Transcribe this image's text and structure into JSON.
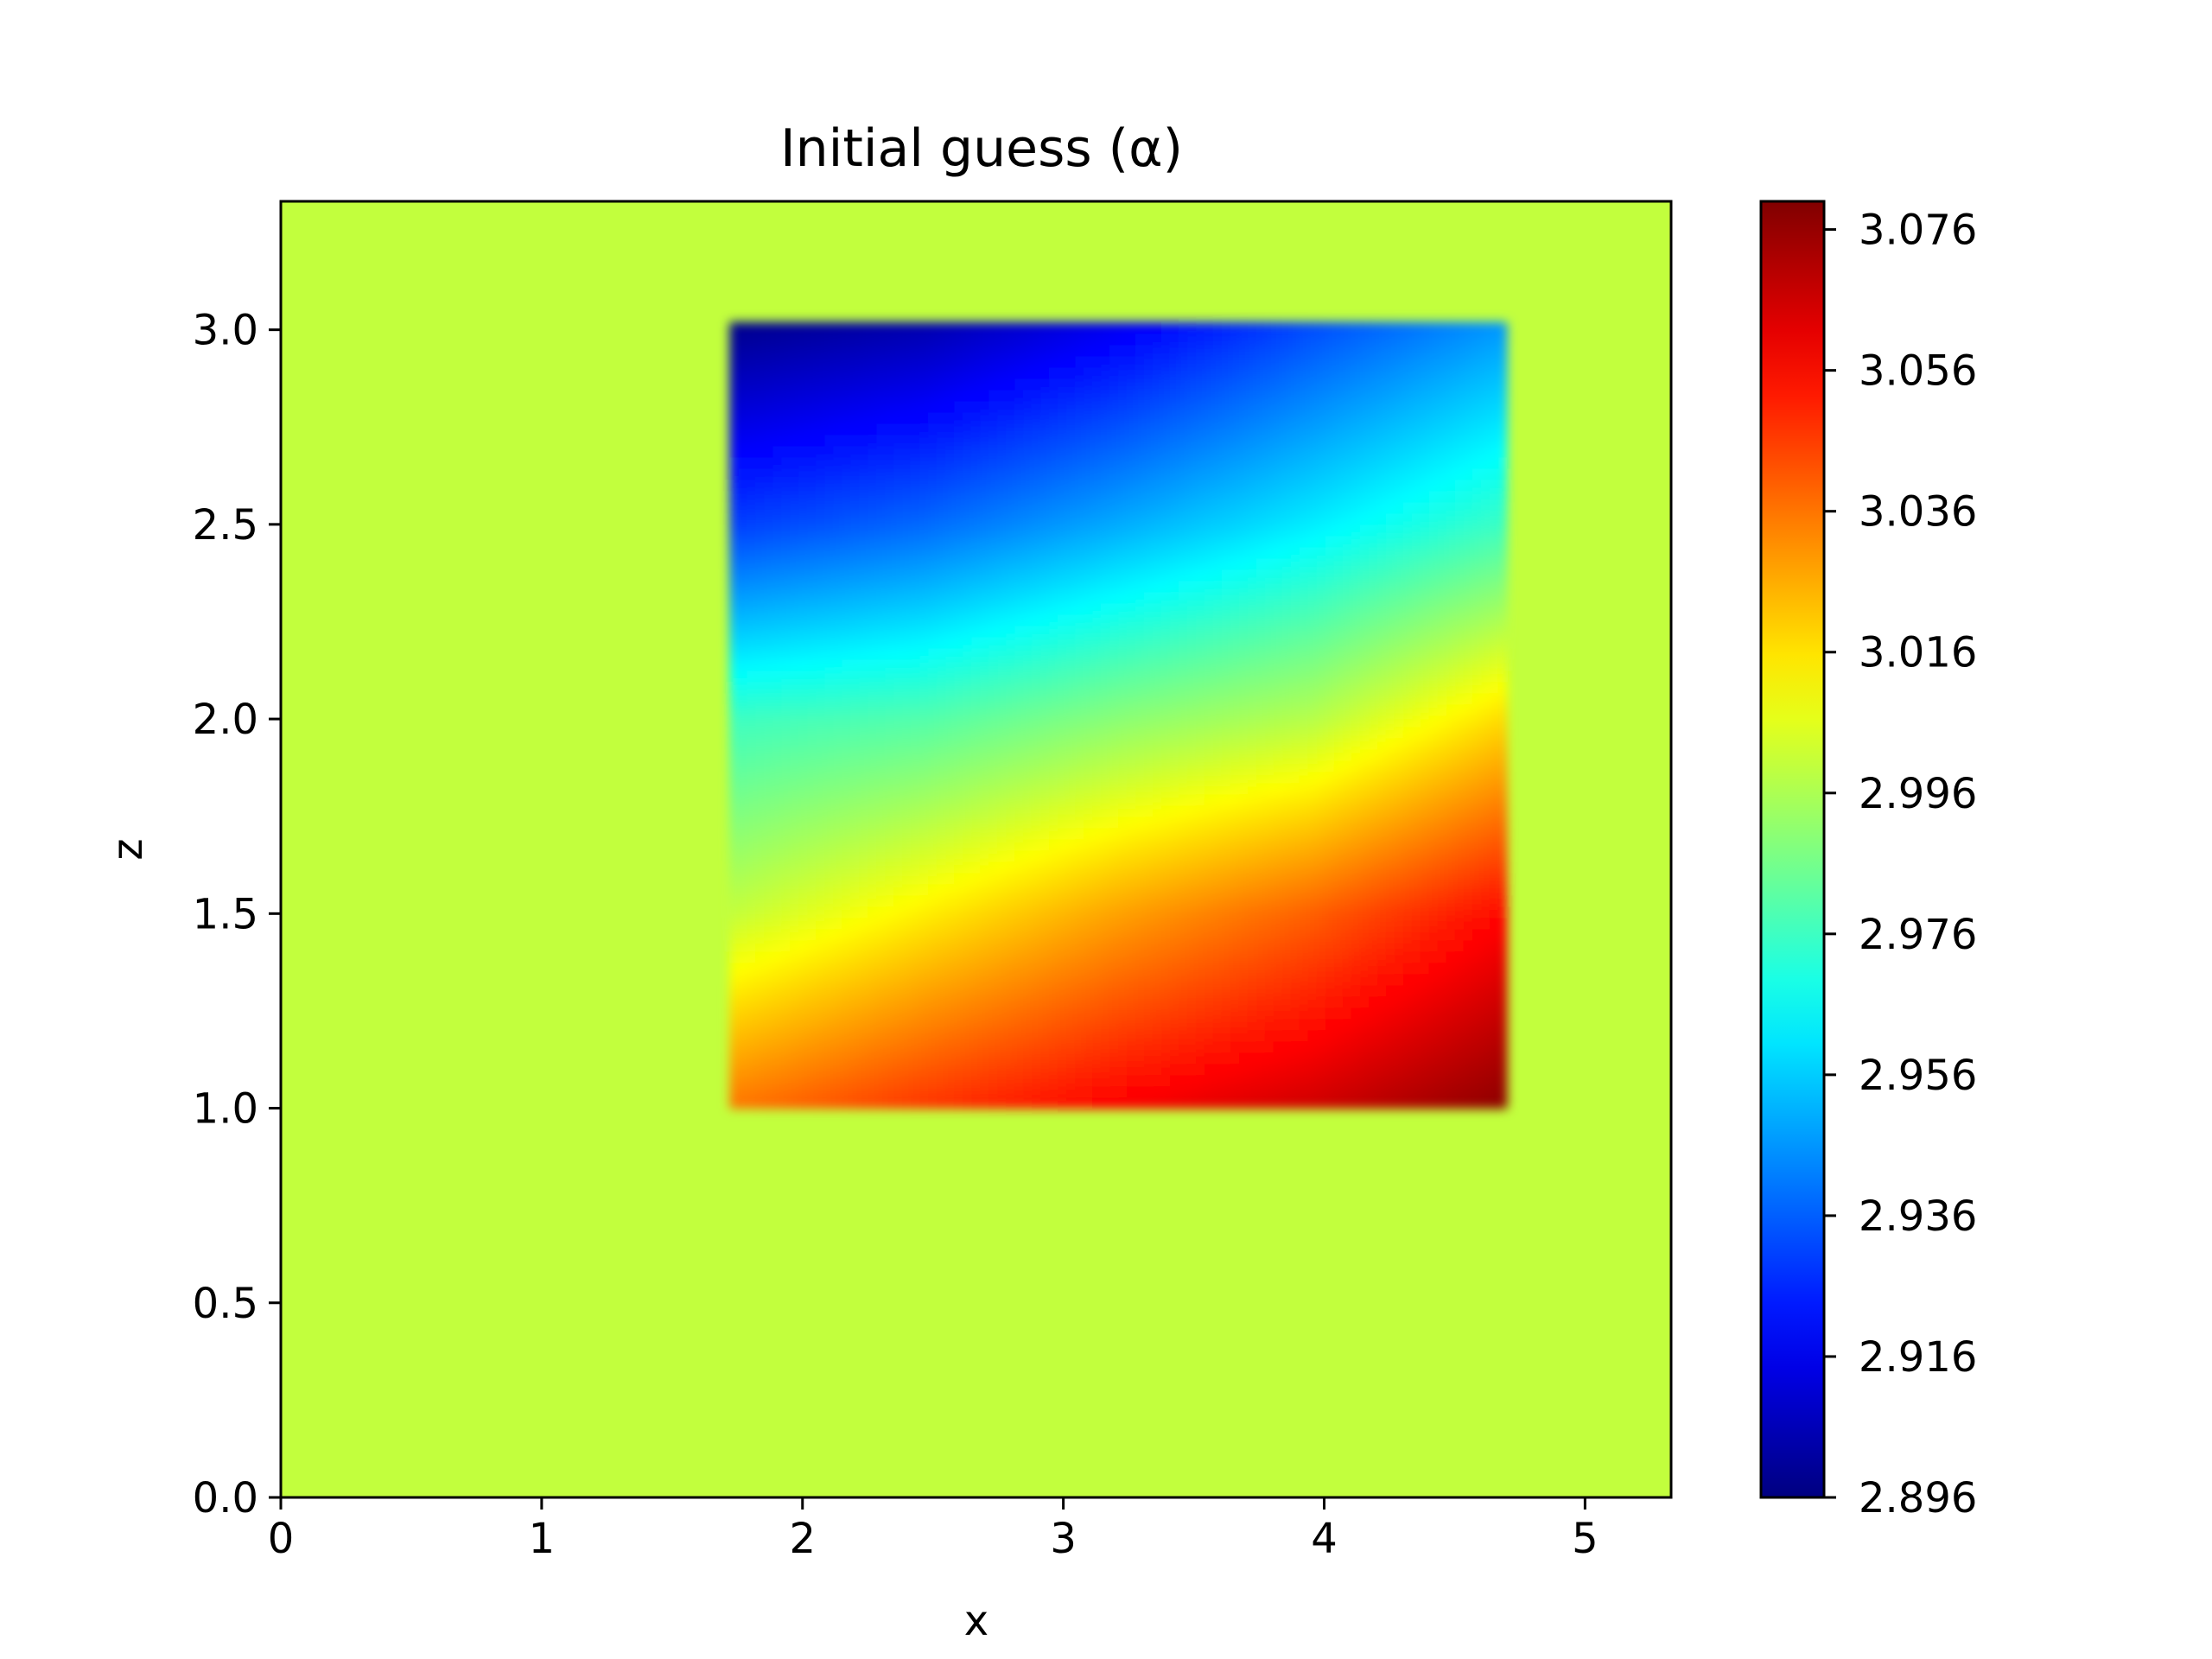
{
  "chart_data": {
    "type": "heatmap",
    "title": "Initial guess (α)",
    "xlabel": "x",
    "ylabel": "z",
    "xlim": [
      0,
      5.33
    ],
    "ylim": [
      0,
      3.33
    ],
    "x_ticks": [
      0,
      1,
      2,
      3,
      4,
      5
    ],
    "x_tick_labels": [
      "0",
      "1",
      "2",
      "3",
      "4",
      "5"
    ],
    "y_ticks": [
      0.0,
      0.5,
      1.0,
      1.5,
      2.0,
      2.5,
      3.0
    ],
    "y_tick_labels": [
      "0.0",
      "0.5",
      "1.0",
      "1.5",
      "2.0",
      "2.5",
      "3.0"
    ],
    "colormap": "jet",
    "colorbar": {
      "range": [
        2.896,
        3.08
      ],
      "ticks": [
        2.896,
        2.916,
        2.936,
        2.956,
        2.976,
        2.996,
        3.016,
        3.036,
        3.056,
        3.076
      ],
      "tick_labels": [
        "2.896",
        "2.916",
        "2.936",
        "2.956",
        "2.976",
        "2.996",
        "3.016",
        "3.036",
        "3.056",
        "3.076"
      ]
    },
    "field": {
      "background_value": 3.0,
      "anomaly_region": {
        "x": [
          1.72,
          4.7
        ],
        "z": [
          1.0,
          3.02
        ]
      },
      "min": {
        "value": 2.896,
        "x": 1.8,
        "z": 2.95
      },
      "max": {
        "value": 3.08,
        "x": 4.6,
        "z": 1.02
      },
      "grid_x": [
        1.72,
        2.466,
        3.212,
        3.958,
        4.7
      ],
      "grid_z": [
        1.0,
        1.5,
        2.0,
        2.5,
        3.02
      ],
      "values": [
        [
          3.036,
          3.048,
          3.058,
          3.066,
          3.078
        ],
        [
          3.0,
          3.014,
          3.028,
          3.04,
          3.056
        ],
        [
          2.976,
          2.98,
          2.99,
          2.998,
          3.018
        ],
        [
          2.93,
          2.938,
          2.95,
          2.962,
          2.976
        ],
        [
          2.898,
          2.904,
          2.916,
          2.932,
          2.946
        ]
      ]
    }
  }
}
